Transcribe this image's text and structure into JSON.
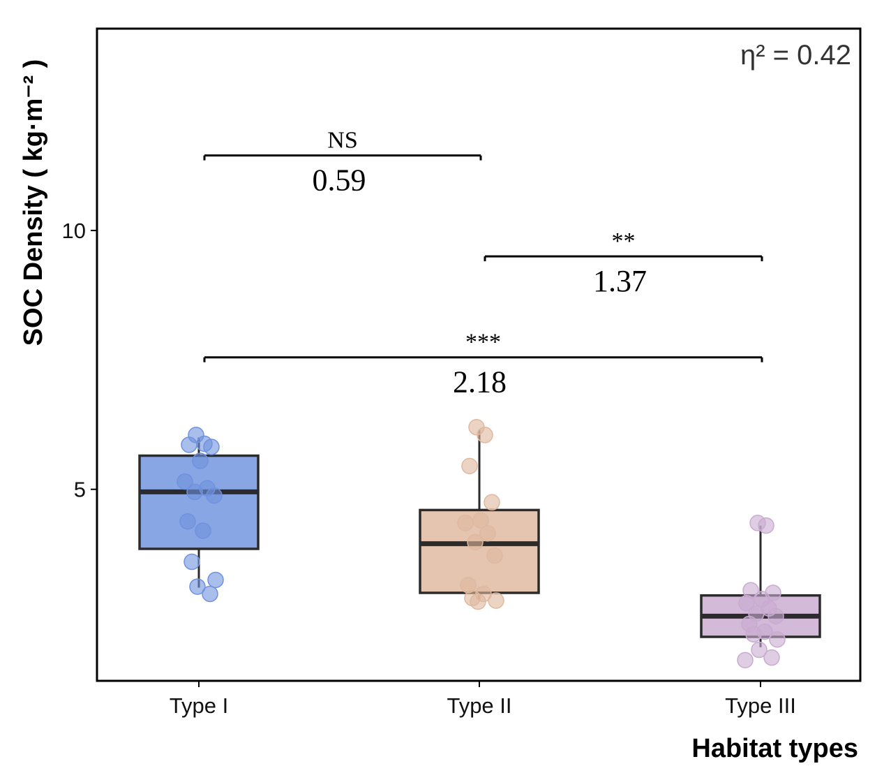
{
  "chart_data": {
    "type": "box",
    "xlabel": "Habitat types",
    "ylabel": "SOC Density ( kg·m⁻² )",
    "effect_size_label": "η² = 0.42",
    "ylim": [
      1.3,
      13.9
    ],
    "yticks": [
      5,
      10
    ],
    "categories": [
      "Type I",
      "Type II",
      "Type III"
    ],
    "colors": {
      "Type I": "#6f92de",
      "Type II": "#dfb89f",
      "Type III": "#c9abd1",
      "box_edge": "#2b2b2b"
    },
    "boxes": [
      {
        "category": "Type I",
        "whisker_low": 3.1,
        "q1": 3.85,
        "median": 4.95,
        "q3": 5.65,
        "whisker_high": 6.0
      },
      {
        "category": "Type II",
        "whisker_low": 2.85,
        "q1": 3.0,
        "median": 3.95,
        "q3": 4.6,
        "whisker_high": 6.15
      },
      {
        "category": "Type III",
        "whisker_low": 1.95,
        "q1": 2.15,
        "median": 2.55,
        "q3": 2.95,
        "whisker_high": 4.3
      }
    ],
    "points": [
      {
        "category": "Type I",
        "values": [
          6.05,
          5.88,
          5.86,
          5.82,
          5.55,
          5.15,
          5.02,
          4.95,
          4.88,
          4.38,
          4.2,
          3.6,
          3.25,
          3.12,
          2.98
        ]
      },
      {
        "category": "Type II",
        "values": [
          6.2,
          6.05,
          5.45,
          4.75,
          4.4,
          4.35,
          4.15,
          3.98,
          3.72,
          3.15,
          2.98,
          2.9,
          2.85,
          2.83
        ]
      },
      {
        "category": "Type III",
        "values": [
          4.35,
          4.3,
          3.05,
          3.0,
          2.88,
          2.8,
          2.7,
          2.6,
          2.55,
          2.4,
          2.25,
          2.2,
          2.1,
          1.9,
          1.75,
          1.7
        ]
      }
    ],
    "comparisons": [
      {
        "from": "Type I",
        "to": "Type II",
        "y": 11.45,
        "significance": "NS",
        "difference": "0.59"
      },
      {
        "from": "Type II",
        "to": "Type III",
        "y": 9.5,
        "significance": "**",
        "difference": "1.37"
      },
      {
        "from": "Type I",
        "to": "Type III",
        "y": 7.55,
        "significance": "***",
        "difference": "2.18"
      }
    ]
  }
}
